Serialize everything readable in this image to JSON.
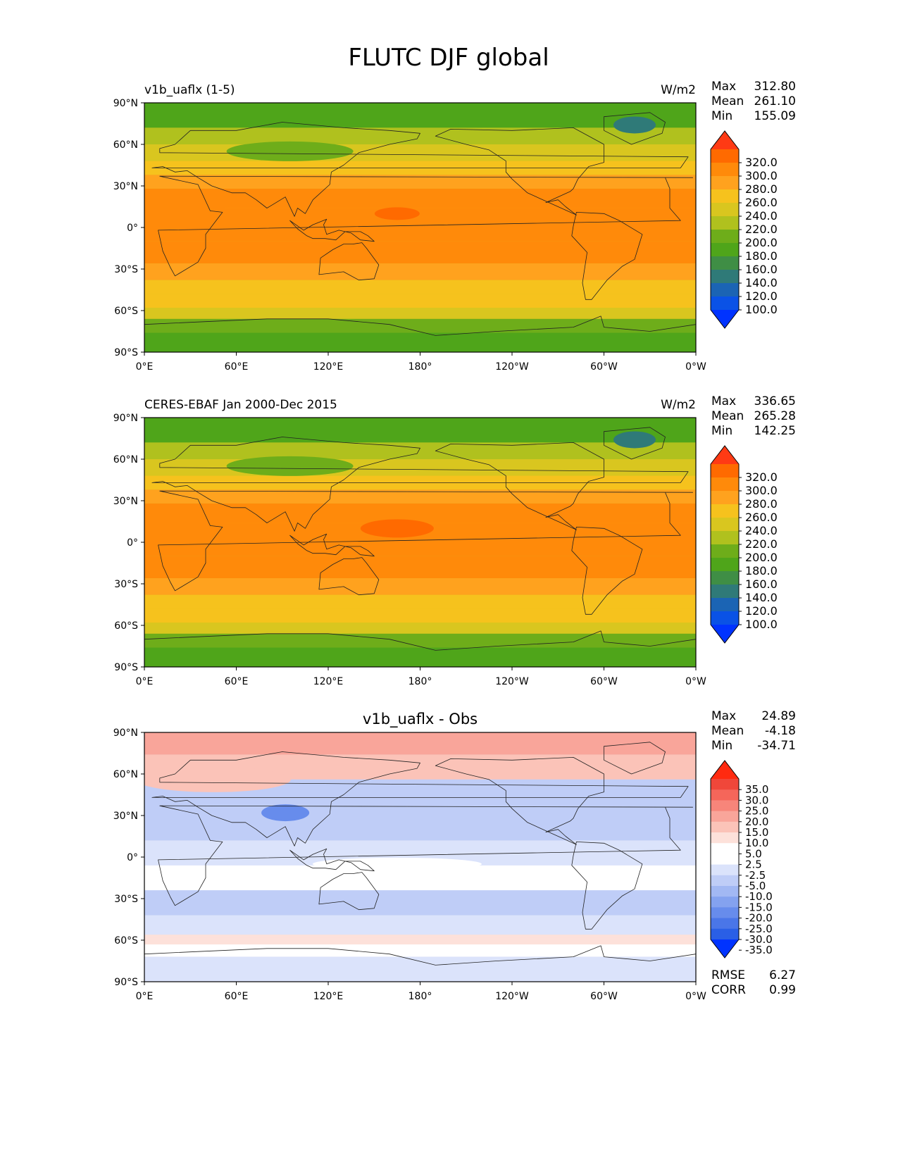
{
  "figure": {
    "title": "FLUTC DJF global"
  },
  "axis_labels": {
    "lat": [
      "90°N",
      "60°N",
      "30°N",
      "0°",
      "30°S",
      "60°S",
      "90°S"
    ],
    "lon": [
      "0°E",
      "60°E",
      "120°E",
      "180°",
      "120°W",
      "60°W",
      "0°W"
    ]
  },
  "panels": [
    {
      "left_title": "v1b_uaflx (1-5)",
      "center_title": "",
      "units": "W/m2",
      "stats": [
        {
          "label": "Max",
          "value": "312.80"
        },
        {
          "label": "Mean",
          "value": "261.10"
        },
        {
          "label": "Min",
          "value": "155.09"
        }
      ],
      "colorbar": {
        "ticks": [
          "320.0",
          "300.0",
          "280.0",
          "260.0",
          "240.0",
          "220.0",
          "200.0",
          "180.0",
          "160.0",
          "140.0",
          "120.0",
          "100.0"
        ],
        "colors": [
          "#ff3a14",
          "#ff6a00",
          "#ff8a0a",
          "#ffa21e",
          "#f6c21d",
          "#d9c61f",
          "#b0c11e",
          "#6ead1a",
          "#4fa51a",
          "#3f8e45",
          "#2f7a78",
          "#1b64b4",
          "#0a52e6",
          "#0033ff"
        ]
      }
    },
    {
      "left_title": "CERES-EBAF Jan 2000-Dec 2015",
      "center_title": "",
      "units": "W/m2",
      "stats": [
        {
          "label": "Max",
          "value": "336.65"
        },
        {
          "label": "Mean",
          "value": "265.28"
        },
        {
          "label": "Min",
          "value": "142.25"
        }
      ],
      "colorbar": {
        "ticks": [
          "320.0",
          "300.0",
          "280.0",
          "260.0",
          "240.0",
          "220.0",
          "200.0",
          "180.0",
          "160.0",
          "140.0",
          "120.0",
          "100.0"
        ],
        "colors": [
          "#ff3a14",
          "#ff6a00",
          "#ff8a0a",
          "#ffa21e",
          "#f6c21d",
          "#d9c61f",
          "#b0c11e",
          "#6ead1a",
          "#4fa51a",
          "#3f8e45",
          "#2f7a78",
          "#1b64b4",
          "#0a52e6",
          "#0033ff"
        ]
      }
    },
    {
      "left_title": "",
      "center_title": "v1b_uaflx - Obs",
      "units": "",
      "stats": [
        {
          "label": "Max",
          "value": "24.89"
        },
        {
          "label": "Mean",
          "value": "-4.18"
        },
        {
          "label": "Min",
          "value": "-34.71"
        }
      ],
      "extra_stats": [
        {
          "label": "RMSE",
          "value": "6.27"
        },
        {
          "label": "CORR",
          "value": "0.99"
        }
      ],
      "colorbar": {
        "ticks": [
          "35.0",
          "30.0",
          "25.0",
          "20.0",
          "15.0",
          "10.0",
          "5.0",
          "2.5",
          "-2.5",
          "-5.0",
          "-10.0",
          "-15.0",
          "-20.0",
          "-25.0",
          "-30.0",
          "-35.0"
        ],
        "colors": [
          "#ff2a10",
          "#f0473a",
          "#f5665a",
          "#f7857a",
          "#f9a59a",
          "#fbc3b8",
          "#fde1da",
          "#ffffff",
          "#ffffff",
          "#dbe3fb",
          "#bfcdf7",
          "#a2b8f3",
          "#84a2ef",
          "#678cec",
          "#4a76e8",
          "#2a5fe6",
          "#0033ff"
        ]
      }
    }
  ]
}
